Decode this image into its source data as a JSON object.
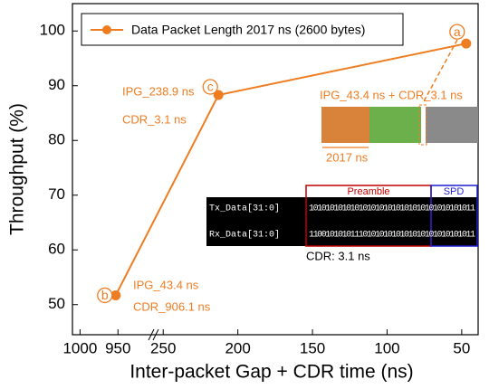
{
  "chart_data": {
    "type": "line",
    "y_label": "Throughput (%)",
    "x_label": "Inter-packet Gap + CDR time (ns)",
    "ylim": [
      44.5,
      105
    ],
    "yticks": [
      50,
      60,
      70,
      80,
      90,
      100
    ],
    "x_segments": [
      {
        "xlim": [
          1010,
          905
        ],
        "xticks": [
          1000,
          950
        ]
      },
      {
        "xlim": [
          255,
          39
        ],
        "xticks": [
          250,
          200,
          150,
          100,
          50
        ]
      }
    ],
    "series": [
      {
        "name": "Data Packet Length 2017 ns (2600 bytes)",
        "color": "#ee7d22",
        "x": [
          953,
          213,
          47
        ],
        "values": [
          51.7,
          88.3,
          97.7
        ],
        "point_labels": [
          "b",
          "c",
          "a"
        ]
      }
    ],
    "annotations": [
      "IPG_238.9 ns",
      "CDR_3.1 ns",
      "IPG_43.4 ns",
      "CDR_906.1 ns",
      "IPG_43.4 ns + CDR_3.1 ns",
      "2017 ns"
    ],
    "inset": {
      "rows": [
        {
          "label": "Tx_Data[31:0]",
          "bits": "1010101010101010101010101010101010101011"
        },
        {
          "label": "Rx_Data[31:0]",
          "bits": "1100101010111010101010101010101010101011"
        }
      ],
      "preamble": "Preamble",
      "spd": "SPD",
      "caption": "CDR: 3.1 ns"
    }
  }
}
